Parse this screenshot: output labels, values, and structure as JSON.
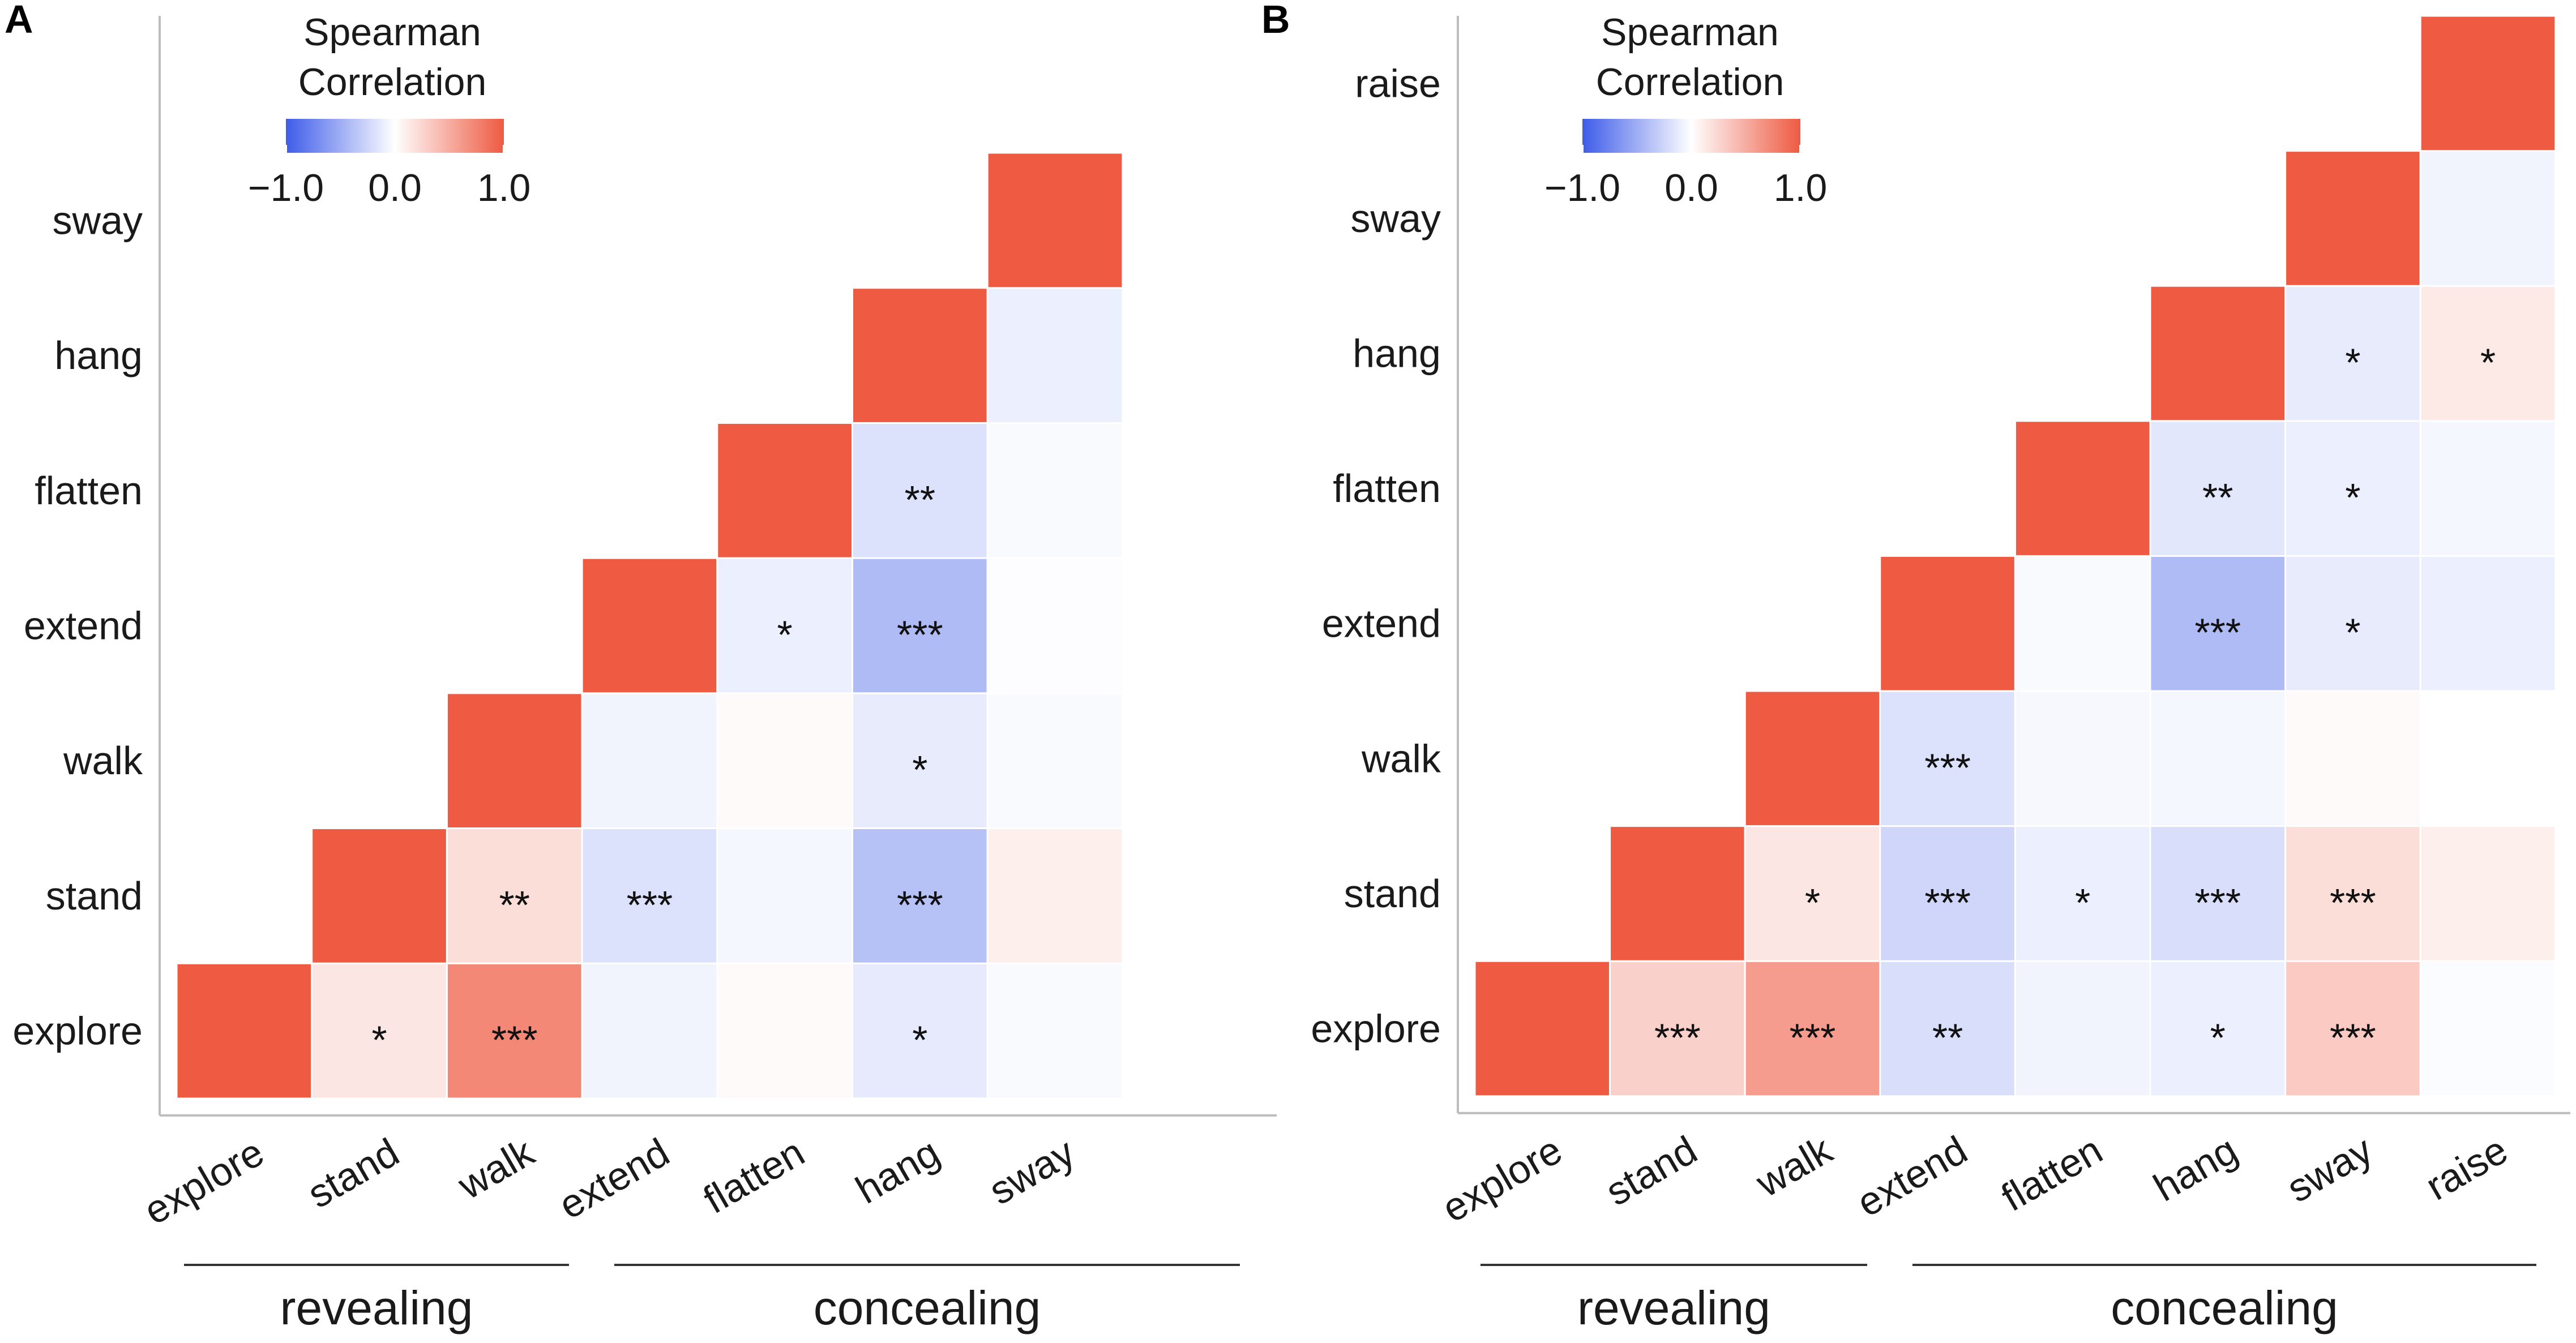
{
  "colors": {
    "low": "#3f5ce8",
    "mid": "#ffffff",
    "high": "#ee5a42",
    "axis": "#bdbdbd"
  },
  "chart_data": [
    {
      "panel_label": "A",
      "type": "heatmap",
      "legend": {
        "title_line1": "Spearman",
        "title_line2": "Correlation",
        "ticks": [
          "−1.0",
          "0.0",
          "1.0"
        ],
        "range": [
          -1.0,
          1.0
        ]
      },
      "variables": [
        "explore",
        "stand",
        "walk",
        "extend",
        "flatten",
        "hang",
        "sway"
      ],
      "groups": [
        {
          "label": "revealing",
          "members": [
            "explore",
            "stand",
            "walk"
          ]
        },
        {
          "label": "concealing",
          "members": [
            "extend",
            "flatten",
            "hang",
            "sway"
          ]
        }
      ],
      "cells": [
        {
          "row": "explore",
          "col": "explore",
          "value": 1.0,
          "sig": ""
        },
        {
          "row": "explore",
          "col": "stand",
          "value": 0.15,
          "sig": "*"
        },
        {
          "row": "explore",
          "col": "walk",
          "value": 0.72,
          "sig": "***"
        },
        {
          "row": "explore",
          "col": "extend",
          "value": -0.07,
          "sig": ""
        },
        {
          "row": "explore",
          "col": "flatten",
          "value": 0.03,
          "sig": ""
        },
        {
          "row": "explore",
          "col": "hang",
          "value": -0.13,
          "sig": "*"
        },
        {
          "row": "explore",
          "col": "sway",
          "value": -0.03,
          "sig": ""
        },
        {
          "row": "stand",
          "col": "stand",
          "value": 1.0,
          "sig": ""
        },
        {
          "row": "stand",
          "col": "walk",
          "value": 0.2,
          "sig": "**"
        },
        {
          "row": "stand",
          "col": "extend",
          "value": -0.18,
          "sig": "***"
        },
        {
          "row": "stand",
          "col": "flatten",
          "value": -0.05,
          "sig": ""
        },
        {
          "row": "stand",
          "col": "hang",
          "value": -0.38,
          "sig": "***"
        },
        {
          "row": "stand",
          "col": "sway",
          "value": 0.1,
          "sig": ""
        },
        {
          "row": "walk",
          "col": "walk",
          "value": 1.0,
          "sig": ""
        },
        {
          "row": "walk",
          "col": "extend",
          "value": -0.07,
          "sig": ""
        },
        {
          "row": "walk",
          "col": "flatten",
          "value": 0.03,
          "sig": ""
        },
        {
          "row": "walk",
          "col": "hang",
          "value": -0.12,
          "sig": "*"
        },
        {
          "row": "walk",
          "col": "sway",
          "value": -0.03,
          "sig": ""
        },
        {
          "row": "extend",
          "col": "extend",
          "value": 1.0,
          "sig": ""
        },
        {
          "row": "extend",
          "col": "flatten",
          "value": -0.1,
          "sig": "*"
        },
        {
          "row": "extend",
          "col": "hang",
          "value": -0.42,
          "sig": "***"
        },
        {
          "row": "extend",
          "col": "sway",
          "value": -0.01,
          "sig": ""
        },
        {
          "row": "flatten",
          "col": "flatten",
          "value": 1.0,
          "sig": ""
        },
        {
          "row": "flatten",
          "col": "hang",
          "value": -0.18,
          "sig": "**"
        },
        {
          "row": "flatten",
          "col": "sway",
          "value": -0.03,
          "sig": ""
        },
        {
          "row": "hang",
          "col": "hang",
          "value": 1.0,
          "sig": ""
        },
        {
          "row": "hang",
          "col": "sway",
          "value": -0.1,
          "sig": ""
        },
        {
          "row": "sway",
          "col": "sway",
          "value": 1.0,
          "sig": ""
        }
      ]
    },
    {
      "panel_label": "B",
      "type": "heatmap",
      "legend": {
        "title_line1": "Spearman",
        "title_line2": "Correlation",
        "ticks": [
          "−1.0",
          "0.0",
          "1.0"
        ],
        "range": [
          -1.0,
          1.0
        ]
      },
      "variables": [
        "explore",
        "stand",
        "walk",
        "extend",
        "flatten",
        "hang",
        "sway",
        "raise"
      ],
      "groups": [
        {
          "label": "revealing",
          "members": [
            "explore",
            "stand",
            "walk"
          ]
        },
        {
          "label": "concealing",
          "members": [
            "extend",
            "flatten",
            "hang",
            "sway",
            "raise"
          ]
        }
      ],
      "cells": [
        {
          "row": "explore",
          "col": "explore",
          "value": 1.0,
          "sig": ""
        },
        {
          "row": "explore",
          "col": "stand",
          "value": 0.28,
          "sig": "***"
        },
        {
          "row": "explore",
          "col": "walk",
          "value": 0.6,
          "sig": "***"
        },
        {
          "row": "explore",
          "col": "extend",
          "value": -0.2,
          "sig": "**"
        },
        {
          "row": "explore",
          "col": "flatten",
          "value": -0.07,
          "sig": ""
        },
        {
          "row": "explore",
          "col": "hang",
          "value": -0.1,
          "sig": "*"
        },
        {
          "row": "explore",
          "col": "sway",
          "value": 0.32,
          "sig": "***"
        },
        {
          "row": "explore",
          "col": "raise",
          "value": -0.02,
          "sig": ""
        },
        {
          "row": "stand",
          "col": "stand",
          "value": 1.0,
          "sig": ""
        },
        {
          "row": "stand",
          "col": "walk",
          "value": 0.15,
          "sig": "*"
        },
        {
          "row": "stand",
          "col": "extend",
          "value": -0.25,
          "sig": "***"
        },
        {
          "row": "stand",
          "col": "flatten",
          "value": -0.1,
          "sig": "*"
        },
        {
          "row": "stand",
          "col": "hang",
          "value": -0.2,
          "sig": "***"
        },
        {
          "row": "stand",
          "col": "sway",
          "value": 0.2,
          "sig": "***"
        },
        {
          "row": "stand",
          "col": "raise",
          "value": 0.1,
          "sig": ""
        },
        {
          "row": "walk",
          "col": "walk",
          "value": 1.0,
          "sig": ""
        },
        {
          "row": "walk",
          "col": "extend",
          "value": -0.18,
          "sig": "***"
        },
        {
          "row": "walk",
          "col": "flatten",
          "value": -0.04,
          "sig": ""
        },
        {
          "row": "walk",
          "col": "hang",
          "value": -0.05,
          "sig": ""
        },
        {
          "row": "walk",
          "col": "sway",
          "value": 0.03,
          "sig": ""
        },
        {
          "row": "walk",
          "col": "raise",
          "value": 0.0,
          "sig": ""
        },
        {
          "row": "extend",
          "col": "extend",
          "value": 1.0,
          "sig": ""
        },
        {
          "row": "extend",
          "col": "flatten",
          "value": -0.03,
          "sig": ""
        },
        {
          "row": "extend",
          "col": "hang",
          "value": -0.42,
          "sig": "***"
        },
        {
          "row": "extend",
          "col": "sway",
          "value": -0.12,
          "sig": "*"
        },
        {
          "row": "extend",
          "col": "raise",
          "value": -0.1,
          "sig": ""
        },
        {
          "row": "flatten",
          "col": "flatten",
          "value": 1.0,
          "sig": ""
        },
        {
          "row": "flatten",
          "col": "hang",
          "value": -0.15,
          "sig": "**"
        },
        {
          "row": "flatten",
          "col": "sway",
          "value": -0.1,
          "sig": "*"
        },
        {
          "row": "flatten",
          "col": "raise",
          "value": -0.05,
          "sig": ""
        },
        {
          "row": "hang",
          "col": "hang",
          "value": 1.0,
          "sig": ""
        },
        {
          "row": "hang",
          "col": "sway",
          "value": -0.12,
          "sig": "*"
        },
        {
          "row": "hang",
          "col": "raise",
          "value": 0.13,
          "sig": "*"
        },
        {
          "row": "sway",
          "col": "sway",
          "value": 1.0,
          "sig": ""
        },
        {
          "row": "sway",
          "col": "raise",
          "value": -0.07,
          "sig": ""
        },
        {
          "row": "raise",
          "col": "raise",
          "value": 1.0,
          "sig": ""
        }
      ]
    }
  ]
}
